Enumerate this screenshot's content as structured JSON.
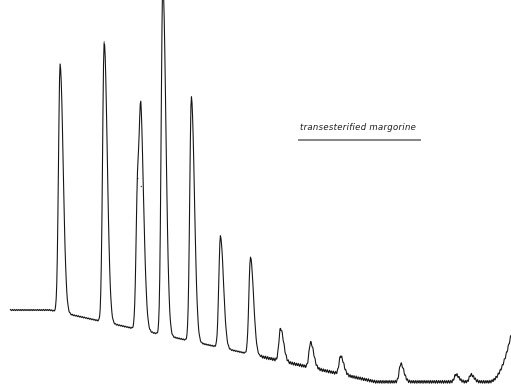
{
  "chart_data": {
    "type": "line",
    "title": "",
    "xlabel": "",
    "ylabel": "",
    "grid": false,
    "annotation": "transesterified margorine",
    "baseline_start": 0.22,
    "baseline_end": 0.02,
    "ylim": [
      0,
      1
    ],
    "peaks": [
      {
        "x": 0.1,
        "height": 0.69
      },
      {
        "x": 0.188,
        "height": 0.78
      },
      {
        "x": 0.255,
        "height": 0.42
      },
      {
        "x": 0.262,
        "height": 0.4
      },
      {
        "x": 0.305,
        "height": 0.98
      },
      {
        "x": 0.362,
        "height": 0.68
      },
      {
        "x": 0.42,
        "height": 0.31
      },
      {
        "x": 0.48,
        "height": 0.27
      },
      {
        "x": 0.54,
        "height": 0.09
      },
      {
        "x": 0.6,
        "height": 0.07
      },
      {
        "x": 0.66,
        "height": 0.05
      },
      {
        "x": 0.78,
        "height": 0.05
      },
      {
        "x": 0.89,
        "height": 0.02
      },
      {
        "x": 0.92,
        "height": 0.02
      }
    ],
    "tail_rise": 0.13
  },
  "colors": {
    "trace": "#151515",
    "background": "#ffffff"
  }
}
